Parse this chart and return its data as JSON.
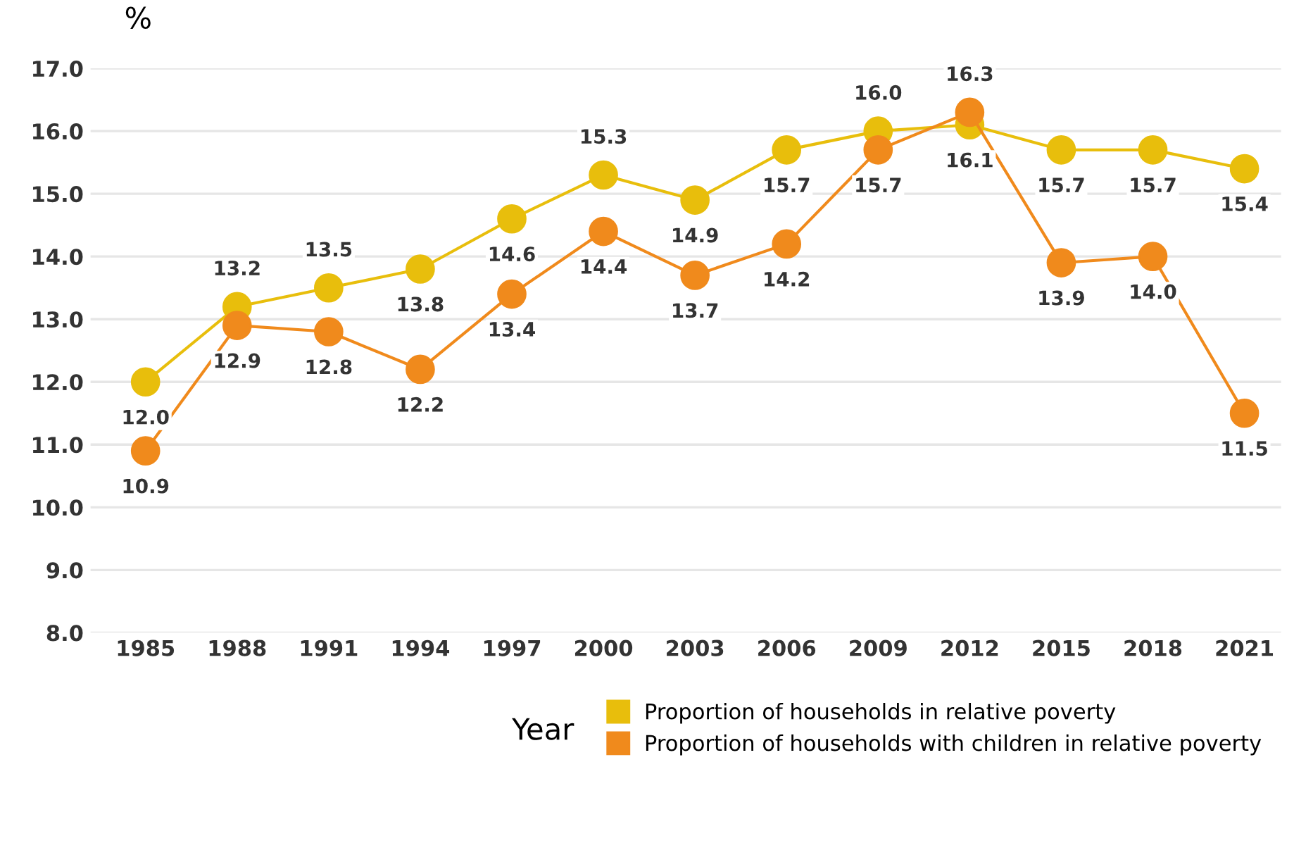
{
  "chart_data": {
    "type": "line",
    "ylabel": "%",
    "xlabel": "Year",
    "categories": [
      "1985",
      "1988",
      "1991",
      "1994",
      "1997",
      "2000",
      "2003",
      "2006",
      "2009",
      "2012",
      "2015",
      "2018",
      "2021"
    ],
    "series": [
      {
        "name": "Proportion of households in relative poverty",
        "color": "#e8be0c",
        "values": [
          12.0,
          13.2,
          13.5,
          13.8,
          14.6,
          15.3,
          14.9,
          15.7,
          16.0,
          16.1,
          15.7,
          15.7,
          15.4
        ],
        "value_labels": [
          "12.0",
          "13.2",
          "13.5",
          "13.8",
          "14.6",
          "15.3",
          "14.9",
          "15.7",
          "16.0",
          "16.1",
          "15.7",
          "15.7",
          "15.4"
        ]
      },
      {
        "name": "Proportion of households with children in relative poverty",
        "color": "#f08a1c",
        "values": [
          10.9,
          12.9,
          12.8,
          12.2,
          13.4,
          14.4,
          13.7,
          14.2,
          15.7,
          16.3,
          13.9,
          14.0,
          11.5
        ],
        "value_labels": [
          "10.9",
          "12.9",
          "12.8",
          "12.2",
          "13.4",
          "14.4",
          "13.7",
          "14.2",
          "15.7",
          "16.3",
          "13.9",
          "14.0",
          "11.5"
        ]
      }
    ],
    "ylim": [
      8.0,
      17.0
    ],
    "yticks": [
      {
        "value": 8,
        "label": "8.0"
      },
      {
        "value": 9,
        "label": "9.0"
      },
      {
        "value": 10,
        "label": "10.0"
      },
      {
        "value": 11,
        "label": "11.0"
      },
      {
        "value": 12,
        "label": "12.0"
      },
      {
        "value": 13,
        "label": "13.0"
      },
      {
        "value": 14,
        "label": "14.0"
      },
      {
        "value": 15,
        "label": "15.0"
      },
      {
        "value": 16,
        "label": "16.0"
      },
      {
        "value": 17,
        "label": "17.0"
      }
    ],
    "grid": "y",
    "legend": "bottom right",
    "marker": "circle",
    "line_style": "solid"
  }
}
